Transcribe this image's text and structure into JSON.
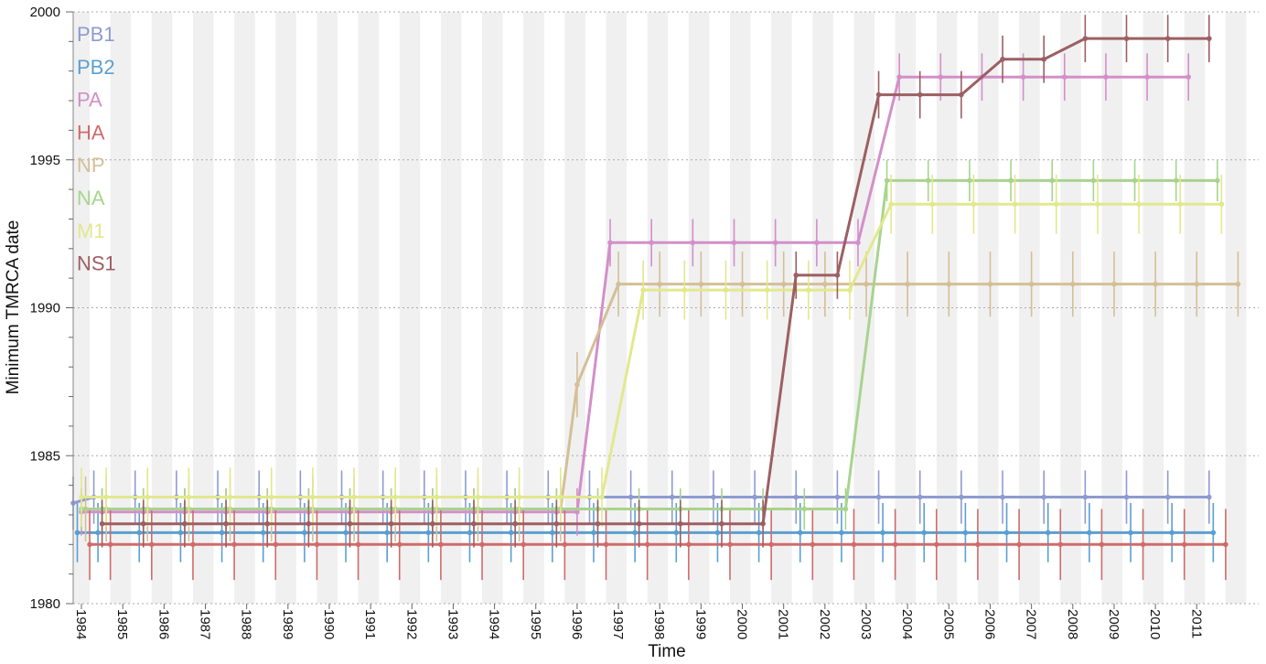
{
  "chart_data": {
    "type": "line",
    "xlabel": "Time",
    "ylabel": "Minimum TMRCA date",
    "xlim": [
      1983.8,
      2012.5
    ],
    "ylim": [
      1980,
      2000
    ],
    "y_ticks": [
      1980,
      1985,
      1990,
      1995,
      2000
    ],
    "x_ticks": [
      1984,
      1985,
      1986,
      1987,
      1988,
      1989,
      1990,
      1991,
      1992,
      1993,
      1994,
      1995,
      1996,
      1997,
      1998,
      1999,
      2000,
      2001,
      2002,
      2003,
      2004,
      2005,
      2006,
      2007,
      2008,
      2009,
      2010,
      2011
    ],
    "grid": "horizontal dotted at major ticks; alternating shaded bands of half-year width",
    "legend_position": "top-left",
    "series": [
      {
        "name": "PB1",
        "color": "#8e9bd1",
        "x": [
          1983.8,
          1984.3,
          1985.3,
          1986.3,
          1987.3,
          1988.3,
          1989.3,
          1990.3,
          1991.3,
          1992.3,
          1993.3,
          1994.3,
          1995.3,
          1996.3,
          1997.3,
          1998.3,
          1999.3,
          2000.3,
          2001.3,
          2002.3,
          2003.3,
          2004.3,
          2005.3,
          2006.3,
          2007.3,
          2008.3,
          2009.3,
          2010.3,
          2011.3
        ],
        "y": [
          1983.4,
          1983.6,
          1983.6,
          1983.6,
          1983.6,
          1983.6,
          1983.6,
          1983.6,
          1983.6,
          1983.6,
          1983.6,
          1983.6,
          1983.6,
          1983.6,
          1983.6,
          1983.6,
          1983.6,
          1983.6,
          1983.6,
          1983.6,
          1983.6,
          1983.6,
          1983.6,
          1983.6,
          1983.6,
          1983.6,
          1983.6,
          1983.6,
          1983.6
        ],
        "err": 0.9
      },
      {
        "name": "PB2",
        "color": "#5b9fd1",
        "x": [
          1983.9,
          1984.4,
          1985.4,
          1986.4,
          1987.4,
          1988.4,
          1989.4,
          1990.4,
          1991.4,
          1992.4,
          1993.4,
          1994.4,
          1995.4,
          1996.4,
          1997.4,
          1998.4,
          1999.4,
          2000.4,
          2001.4,
          2002.4,
          2003.4,
          2004.4,
          2005.4,
          2006.4,
          2007.4,
          2008.4,
          2009.4,
          2010.4,
          2011.4
        ],
        "y": [
          1982.4,
          1982.4,
          1982.4,
          1982.4,
          1982.4,
          1982.4,
          1982.4,
          1982.4,
          1982.4,
          1982.4,
          1982.4,
          1982.4,
          1982.4,
          1982.4,
          1982.4,
          1982.4,
          1982.4,
          1982.4,
          1982.4,
          1982.4,
          1982.4,
          1982.4,
          1982.4,
          1982.4,
          1982.4,
          1982.4,
          1982.4,
          1982.4,
          1982.4
        ],
        "err": 1.0
      },
      {
        "name": "PA",
        "color": "#d38fca",
        "x": [
          1984.0,
          1984.5,
          1985.5,
          1986.5,
          1987.5,
          1988.5,
          1989.5,
          1990.5,
          1991.5,
          1992.5,
          1993.5,
          1994.5,
          1995.5,
          1996.0,
          1996.8,
          1997.8,
          1998.8,
          1999.8,
          2000.8,
          2001.8,
          2002.8,
          2003.8,
          2004.8,
          2005.8,
          2006.8,
          2007.8,
          2008.8,
          2009.8,
          2010.8
        ],
        "y": [
          1983.1,
          1983.1,
          1983.1,
          1983.1,
          1983.1,
          1983.1,
          1983.1,
          1983.1,
          1983.1,
          1983.1,
          1983.1,
          1983.1,
          1983.1,
          1983.1,
          1992.2,
          1992.2,
          1992.2,
          1992.2,
          1992.2,
          1992.2,
          1992.2,
          1997.8,
          1997.8,
          1997.8,
          1997.8,
          1997.8,
          1997.8,
          1997.8,
          1997.8
        ],
        "err": 0.8
      },
      {
        "name": "HA",
        "color": "#cf6b6b",
        "x": [
          1984.2,
          1984.7,
          1985.7,
          1986.7,
          1987.7,
          1988.7,
          1989.7,
          1990.7,
          1991.7,
          1992.7,
          1993.7,
          1994.7,
          1995.7,
          1996.7,
          1997.7,
          1998.7,
          1999.7,
          2000.7,
          2001.7,
          2002.7,
          2003.7,
          2004.7,
          2005.7,
          2006.7,
          2007.7,
          2008.7,
          2009.7,
          2010.7,
          2011.7
        ],
        "y": [
          1982.0,
          1982.0,
          1982.0,
          1982.0,
          1982.0,
          1982.0,
          1982.0,
          1982.0,
          1982.0,
          1982.0,
          1982.0,
          1982.0,
          1982.0,
          1982.0,
          1982.0,
          1982.0,
          1982.0,
          1982.0,
          1982.0,
          1982.0,
          1982.0,
          1982.0,
          1982.0,
          1982.0,
          1982.0,
          1982.0,
          1982.0,
          1982.0,
          1982.0
        ],
        "err": 1.2
      },
      {
        "name": "NP",
        "color": "#d4bf96",
        "x": [
          1984.1,
          1984.6,
          1985.6,
          1986.6,
          1987.6,
          1988.6,
          1989.6,
          1990.6,
          1991.6,
          1992.6,
          1993.6,
          1994.6,
          1995.6,
          1996.0,
          1997.0,
          1998.0,
          1999.0,
          2000.0,
          2001.0,
          2002.0,
          2003.0,
          2004.0,
          2005.0,
          2006.0,
          2007.0,
          2008.0,
          2009.0,
          2010.0,
          2011.0,
          2012.0
        ],
        "y": [
          1983.2,
          1983.2,
          1983.2,
          1983.2,
          1983.2,
          1983.2,
          1983.2,
          1983.2,
          1983.2,
          1983.2,
          1983.2,
          1983.2,
          1983.2,
          1987.4,
          1990.8,
          1990.8,
          1990.8,
          1990.8,
          1990.8,
          1990.8,
          1990.8,
          1990.8,
          1990.8,
          1990.8,
          1990.8,
          1990.8,
          1990.8,
          1990.8,
          1990.8,
          1990.8
        ],
        "err": 1.1
      },
      {
        "name": "NA",
        "color": "#a8d48e",
        "x": [
          1984.0,
          1984.5,
          1985.5,
          1986.5,
          1987.5,
          1988.5,
          1989.5,
          1990.5,
          1991.5,
          1992.5,
          1993.5,
          1994.5,
          1995.5,
          1996.5,
          1997.5,
          1998.5,
          1999.5,
          2000.5,
          2001.5,
          2002.5,
          2003.5,
          2004.5,
          2005.5,
          2006.5,
          2007.5,
          2008.5,
          2009.5,
          2010.5,
          2011.5
        ],
        "y": [
          1983.2,
          1983.2,
          1983.2,
          1983.2,
          1983.2,
          1983.2,
          1983.2,
          1983.2,
          1983.2,
          1983.2,
          1983.2,
          1983.2,
          1983.2,
          1983.2,
          1983.2,
          1983.2,
          1983.2,
          1983.2,
          1983.2,
          1983.2,
          1994.3,
          1994.3,
          1994.3,
          1994.3,
          1994.3,
          1994.3,
          1994.3,
          1994.3,
          1994.3
        ],
        "err": 0.7
      },
      {
        "name": "M1",
        "color": "#e2e88e",
        "x": [
          1984.0,
          1984.6,
          1985.6,
          1986.6,
          1987.6,
          1988.6,
          1989.6,
          1990.6,
          1991.6,
          1992.6,
          1993.6,
          1994.6,
          1995.6,
          1996.6,
          1997.6,
          1998.6,
          1999.6,
          2000.6,
          2001.6,
          2002.6,
          2003.6,
          2004.6,
          2005.6,
          2006.6,
          2007.6,
          2008.6,
          2009.6,
          2010.6,
          2011.6
        ],
        "y": [
          1983.6,
          1983.6,
          1983.6,
          1983.6,
          1983.6,
          1983.6,
          1983.6,
          1983.6,
          1983.6,
          1983.6,
          1983.6,
          1983.6,
          1983.6,
          1983.6,
          1990.6,
          1990.6,
          1990.6,
          1990.6,
          1990.6,
          1990.6,
          1993.5,
          1993.5,
          1993.5,
          1993.5,
          1993.5,
          1993.5,
          1993.5,
          1993.5,
          1993.5
        ],
        "err": 1.0
      },
      {
        "name": "NS1",
        "color": "#9c5f63",
        "x": [
          1984.5,
          1985.5,
          1986.5,
          1987.5,
          1988.5,
          1989.5,
          1990.5,
          1991.5,
          1992.5,
          1993.5,
          1994.5,
          1995.5,
          1996.5,
          1997.5,
          1998.5,
          1999.5,
          2000.5,
          2001.3,
          2002.3,
          2003.3,
          2004.3,
          2005.3,
          2006.3,
          2007.3,
          2008.3,
          2009.3,
          2010.3,
          2011.3
        ],
        "y": [
          1982.7,
          1982.7,
          1982.7,
          1982.7,
          1982.7,
          1982.7,
          1982.7,
          1982.7,
          1982.7,
          1982.7,
          1982.7,
          1982.7,
          1982.7,
          1982.7,
          1982.7,
          1982.7,
          1982.7,
          1991.1,
          1991.1,
          1997.2,
          1997.2,
          1997.2,
          1998.4,
          1998.4,
          1999.1,
          1999.1,
          1999.1,
          1999.1
        ],
        "err": 0.8
      }
    ]
  }
}
